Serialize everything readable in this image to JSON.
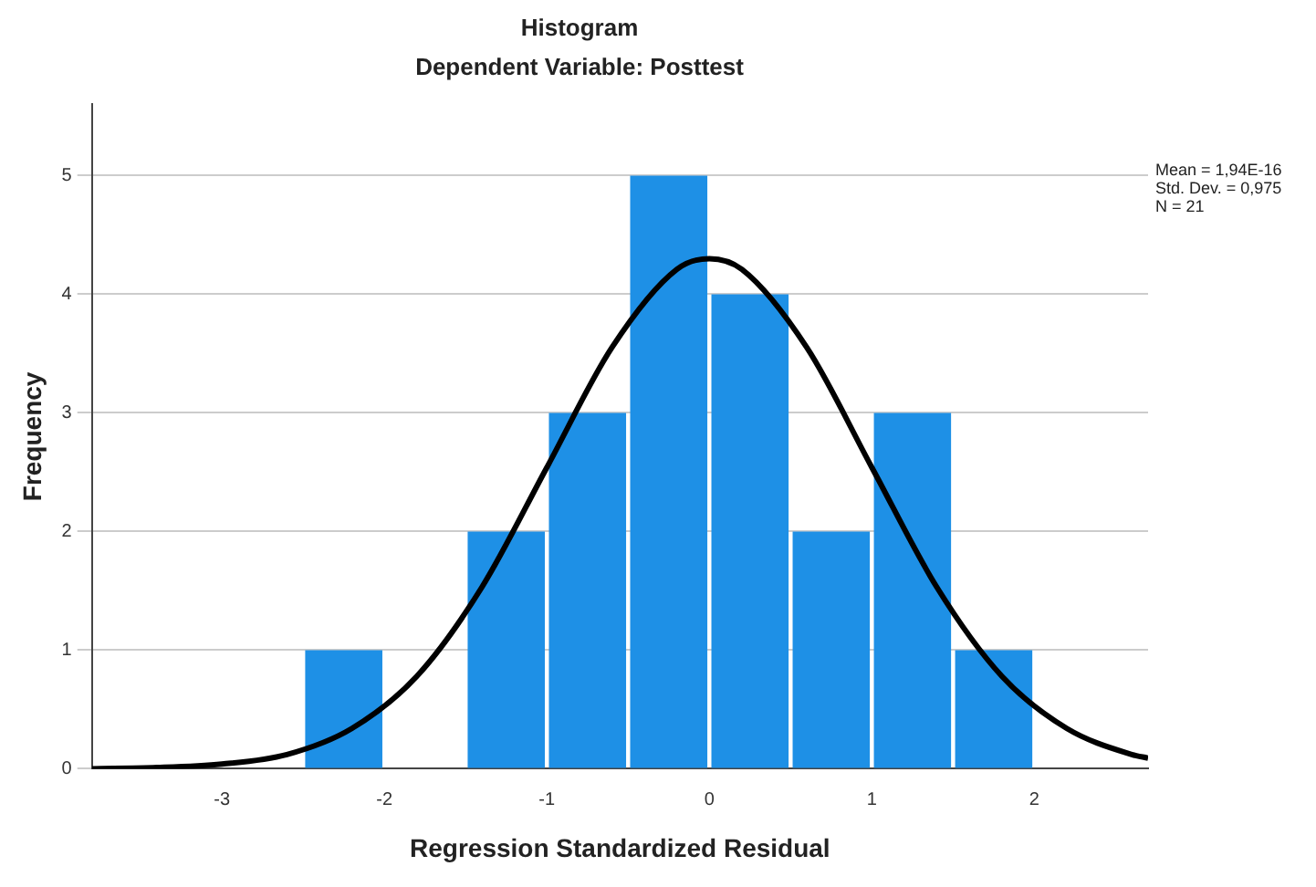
{
  "chart_data": {
    "type": "histogram",
    "title": "Histogram",
    "subtitle": "Dependent Variable: Posttest",
    "xlabel": "Regression Standardized Residual",
    "ylabel": "Frequency",
    "bins": [
      -2.5,
      -2,
      -1.5,
      -1,
      -0.5,
      0,
      0.5,
      1,
      1.5,
      2
    ],
    "values": [
      1,
      0,
      2,
      3,
      5,
      4,
      2,
      3,
      1
    ],
    "color": "#1e90e6",
    "series": [
      {
        "type": "line",
        "color": "#000000",
        "marker": "none",
        "x": [
          -3.8,
          -3.4,
          -3.0,
          -2.6,
          -2.2,
          -1.8,
          -1.4,
          -1.0,
          -0.6,
          -0.2,
          0,
          0.2,
          0.6,
          1.0,
          1.4,
          1.8,
          2.2,
          2.6,
          2.7
        ],
        "values": [
          0.0,
          0.01,
          0.04,
          0.12,
          0.34,
          0.78,
          1.53,
          2.54,
          3.55,
          4.21,
          4.3,
          4.21,
          3.55,
          2.54,
          1.53,
          0.78,
          0.34,
          0.12,
          0.09
        ]
      }
    ],
    "xlim": [
      -3.8,
      2.7
    ],
    "xticks": [
      -3,
      -2,
      -1,
      0,
      1,
      2
    ],
    "ylim": [
      0,
      5.6
    ],
    "yticks": [
      0,
      1,
      2,
      3,
      4,
      5
    ],
    "grid": "y",
    "annotations": [
      "Mean = 1,94E-16",
      "Std. Dev. = 0,975",
      "N = 21"
    ]
  }
}
